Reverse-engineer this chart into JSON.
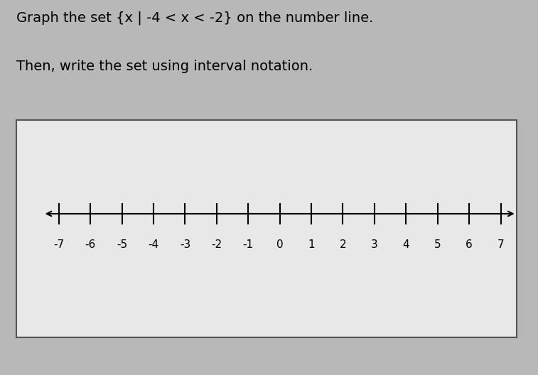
{
  "title_line1": "Graph the set {x | -4 < x < -2} on the number line.",
  "title_line2": "Then, write the set using interval notation.",
  "x_min": -7,
  "x_max": 7,
  "tick_positions": [
    -7,
    -6,
    -5,
    -4,
    -3,
    -2,
    -1,
    0,
    1,
    2,
    3,
    4,
    5,
    6,
    7
  ],
  "background_color": "#b8b8b8",
  "box_facecolor": "#e8e8e8",
  "box_edgecolor": "#555555",
  "text_color": "#000000",
  "axis_color": "#000000",
  "title_fontsize": 14,
  "tick_fontsize": 11
}
